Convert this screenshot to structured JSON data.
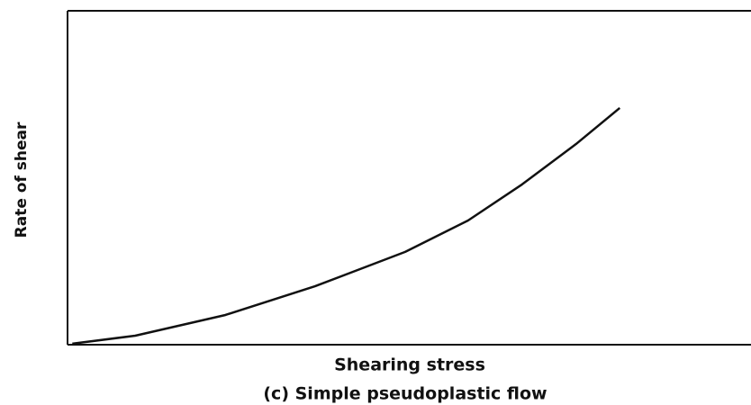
{
  "chart_data": {
    "type": "line",
    "x_label": "Shearing stress",
    "y_label": "Rate of shear",
    "caption": "(c) Simple pseudoplastic flow",
    "x": [
      0.7,
      9.9,
      23.1,
      36.2,
      49.4,
      58.6,
      66.5,
      74.4,
      80.8
    ],
    "series": [
      {
        "color": "#111111",
        "values": [
          0.3,
          2.7,
          8.9,
          17.5,
          27.8,
          37.2,
          48.0,
          60.1,
          70.9
        ]
      }
    ],
    "xlim": [
      0,
      100
    ],
    "ylim": [
      0,
      100
    ]
  }
}
